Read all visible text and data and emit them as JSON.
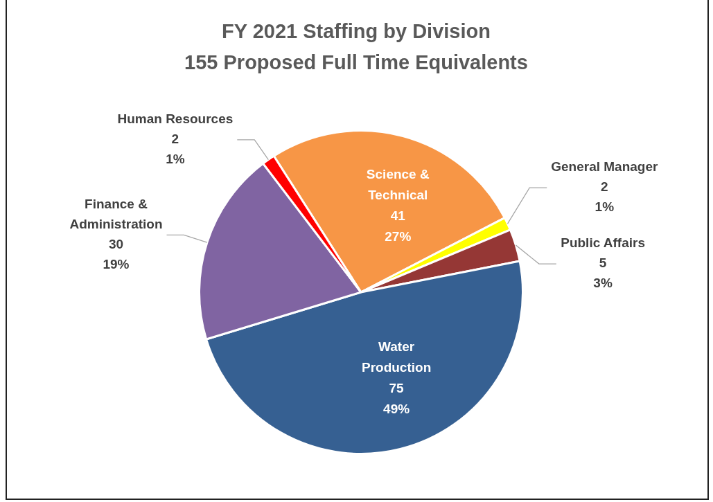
{
  "chart_data": {
    "type": "pie",
    "title": "FY 2021 Staffing by Division",
    "subtitle": "155 Proposed Full Time Equivalents",
    "categories": [
      "Science & Technical",
      "General Manager",
      "Public Affairs",
      "Water Production",
      "Finance & Administration",
      "Human Resources"
    ],
    "values": [
      41,
      2,
      5,
      75,
      30,
      2
    ],
    "colors": [
      "#f79646",
      "#ffff00",
      "#953735",
      "#366092",
      "#8064a2",
      "#ff0000"
    ],
    "value_labels": [
      "41 27%",
      "2 1%",
      "5 3%",
      "75 49%",
      "30 19%",
      "2 1%"
    ],
    "legend": false
  }
}
